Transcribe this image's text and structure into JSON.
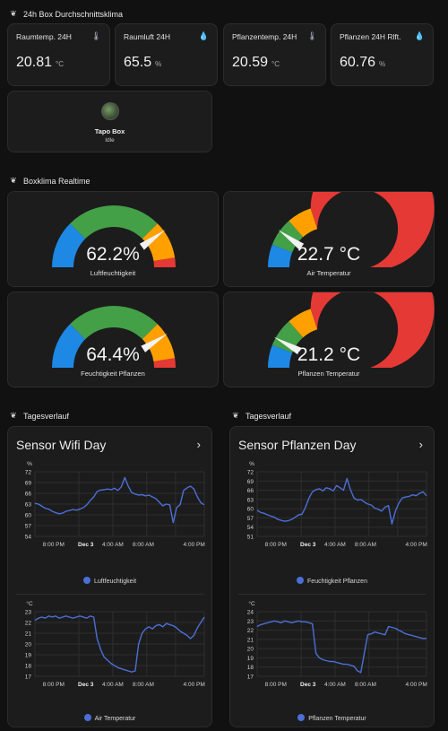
{
  "sections": {
    "avg_title": "24h Box Durchschnittsklima",
    "realtime_title": "Boxklima Realtime",
    "history_left_title": "Tagesverlauf",
    "history_right_title": "Tagesverlauf"
  },
  "stats": [
    {
      "name": "Raumtemp. 24H",
      "value": "20.81",
      "unit": "°C",
      "icon": "thermometer-icon"
    },
    {
      "name": "Raumluft 24H",
      "value": "65.5",
      "unit": "%",
      "icon": "water-drop-icon"
    },
    {
      "name": "Pflanzentemp. 24H",
      "value": "20.59",
      "unit": "°C",
      "icon": "thermometer-icon"
    },
    {
      "name": "Pflanzen 24H Rlft.",
      "value": "60.76",
      "unit": "%",
      "icon": "water-drop-icon"
    }
  ],
  "entity": {
    "name": "Tapo Box",
    "state": "Idle",
    "icon": "avatar-image"
  },
  "gauges": [
    {
      "value": "62.2%",
      "label": "Luftfeuchtigkeit",
      "needle_fraction": 0.8,
      "segments": [
        [
          0,
          0.25,
          "#1e88e5"
        ],
        [
          0.25,
          0.75,
          "#43a047"
        ],
        [
          0.75,
          0.95,
          "#ffa000"
        ],
        [
          0.95,
          1,
          "#e53935"
        ]
      ]
    },
    {
      "value": "22.7 °C",
      "label": "Air Temperatur",
      "needle_fraction": 0.2,
      "segments": [
        [
          0,
          0.12,
          "#1e88e5"
        ],
        [
          0.12,
          0.27,
          "#43a047"
        ],
        [
          0.27,
          0.4,
          "#ffa000"
        ],
        [
          0.4,
          1,
          "#e53935"
        ]
      ]
    },
    {
      "value": "64.4%",
      "label": "Feuchtigkeit Pflanzen",
      "needle_fraction": 0.82,
      "segments": [
        [
          0,
          0.25,
          "#1e88e5"
        ],
        [
          0.25,
          0.75,
          "#43a047"
        ],
        [
          0.75,
          0.95,
          "#ffa000"
        ],
        [
          0.95,
          1,
          "#e53935"
        ]
      ]
    },
    {
      "value": "21.2 °C",
      "label": "Pflanzen Temperatur",
      "needle_fraction": 0.16,
      "segments": [
        [
          0,
          0.12,
          "#1e88e5"
        ],
        [
          0.12,
          0.27,
          "#43a047"
        ],
        [
          0.27,
          0.4,
          "#ffa000"
        ],
        [
          0.4,
          1,
          "#e53935"
        ]
      ]
    }
  ],
  "history": [
    {
      "title": "Sensor Wifi Day",
      "chevron": "›"
    },
    {
      "title": "Sensor Pflanzen Day",
      "chevron": "›"
    }
  ],
  "chart_data": [
    {
      "type": "line",
      "ylabel": "%",
      "ylim": [
        54,
        72
      ],
      "yticks": [
        "72",
        "69",
        "66",
        "63",
        "60",
        "57",
        "54"
      ],
      "xticks": [
        "8:00 PM",
        "Dec 3",
        "4:00 AM",
        "8:00 AM",
        "4:00 PM"
      ],
      "series": [
        {
          "name": "Luftfeuchtigkeit",
          "color": "#4b6fd6",
          "values": [
            63.2,
            63.0,
            62.4,
            61.8,
            61.6,
            61.0,
            60.6,
            60.3,
            60.5,
            61.0,
            61.2,
            61.5,
            61.3,
            61.6,
            62.0,
            62.8,
            64.0,
            65.0,
            66.5,
            66.9,
            67.0,
            67.2,
            67.0,
            67.4,
            66.8,
            67.8,
            70.4,
            68.0,
            66.2,
            65.8,
            65.5,
            65.6,
            65.3,
            65.5,
            65.0,
            64.5,
            63.5,
            62.5,
            63.0,
            62.8,
            57.8,
            62.0,
            62.8,
            66.8,
            67.5,
            68.0,
            67.2,
            65.0,
            63.4,
            62.8
          ]
        }
      ]
    },
    {
      "type": "line",
      "ylabel": "°C",
      "ylim": [
        17,
        23
      ],
      "yticks": [
        "23",
        "22",
        "21",
        "20",
        "19",
        "18",
        "17"
      ],
      "xticks": [
        "8:00 PM",
        "Dec 3",
        "4:00 AM",
        "8:00 AM",
        "4:00 PM"
      ],
      "series": [
        {
          "name": "Air Temperatur",
          "color": "#4b6fd6",
          "values": [
            22.2,
            22.4,
            22.5,
            22.4,
            22.6,
            22.5,
            22.6,
            22.4,
            22.5,
            22.6,
            22.5,
            22.4,
            22.5,
            22.6,
            22.5,
            22.4,
            22.6,
            22.5,
            20.5,
            19.5,
            18.8,
            18.5,
            18.2,
            18.0,
            17.8,
            17.7,
            17.6,
            17.5,
            17.4,
            17.5,
            20.0,
            21.0,
            21.4,
            21.6,
            21.4,
            21.7,
            21.8,
            21.6,
            21.9,
            21.8,
            21.7,
            21.5,
            21.2,
            21.0,
            20.8,
            20.5,
            20.8,
            21.5,
            22.0,
            22.5
          ]
        }
      ]
    },
    {
      "type": "line",
      "ylabel": "%",
      "ylim": [
        51,
        72
      ],
      "yticks": [
        "72",
        "69",
        "66",
        "63",
        "60",
        "57",
        "54",
        "51"
      ],
      "xticks": [
        "8:00 PM",
        "Dec 3",
        "4:00 AM",
        "8:00 AM",
        "4:00 PM"
      ],
      "series": [
        {
          "name": "Feuchtigkeit Pflanzen",
          "color": "#4b6fd6",
          "values": [
            59.5,
            58.8,
            58.5,
            58.0,
            57.6,
            57.2,
            56.5,
            56.2,
            55.9,
            56.1,
            56.5,
            57.2,
            58.0,
            58.2,
            60.5,
            63.5,
            65.5,
            66.2,
            66.5,
            65.8,
            66.8,
            66.5,
            65.8,
            67.5,
            66.8,
            66.0,
            69.8,
            66.2,
            63.5,
            62.8,
            63.0,
            62.2,
            61.5,
            61.2,
            60.2,
            59.8,
            59.2,
            60.5,
            61.0,
            55.0,
            59.2,
            61.8,
            63.5,
            63.8,
            64.0,
            64.5,
            64.2,
            65.0,
            65.5,
            64.2
          ]
        }
      ]
    },
    {
      "type": "line",
      "ylabel": "°C",
      "ylim": [
        17,
        24
      ],
      "yticks": [
        "24",
        "23",
        "22",
        "21",
        "20",
        "19",
        "18",
        "17"
      ],
      "xticks": [
        "8:00 PM",
        "Dec 3",
        "4:00 AM",
        "8:00 AM",
        "4:00 PM"
      ],
      "series": [
        {
          "name": "Pflanzen Temperatur",
          "color": "#4b6fd6",
          "values": [
            22.4,
            22.6,
            22.7,
            22.8,
            22.9,
            23.0,
            22.9,
            22.8,
            23.0,
            22.9,
            22.8,
            22.9,
            23.0,
            22.9,
            22.9,
            22.8,
            22.7,
            19.5,
            19.0,
            18.8,
            18.7,
            18.6,
            18.6,
            18.5,
            18.4,
            18.3,
            18.3,
            18.2,
            18.1,
            17.6,
            17.4,
            19.5,
            21.5,
            21.6,
            21.8,
            21.7,
            21.6,
            21.5,
            22.4,
            22.3,
            22.2,
            22.0,
            21.8,
            21.6,
            21.5,
            21.4,
            21.3,
            21.2,
            21.1,
            21.1
          ]
        }
      ]
    }
  ]
}
